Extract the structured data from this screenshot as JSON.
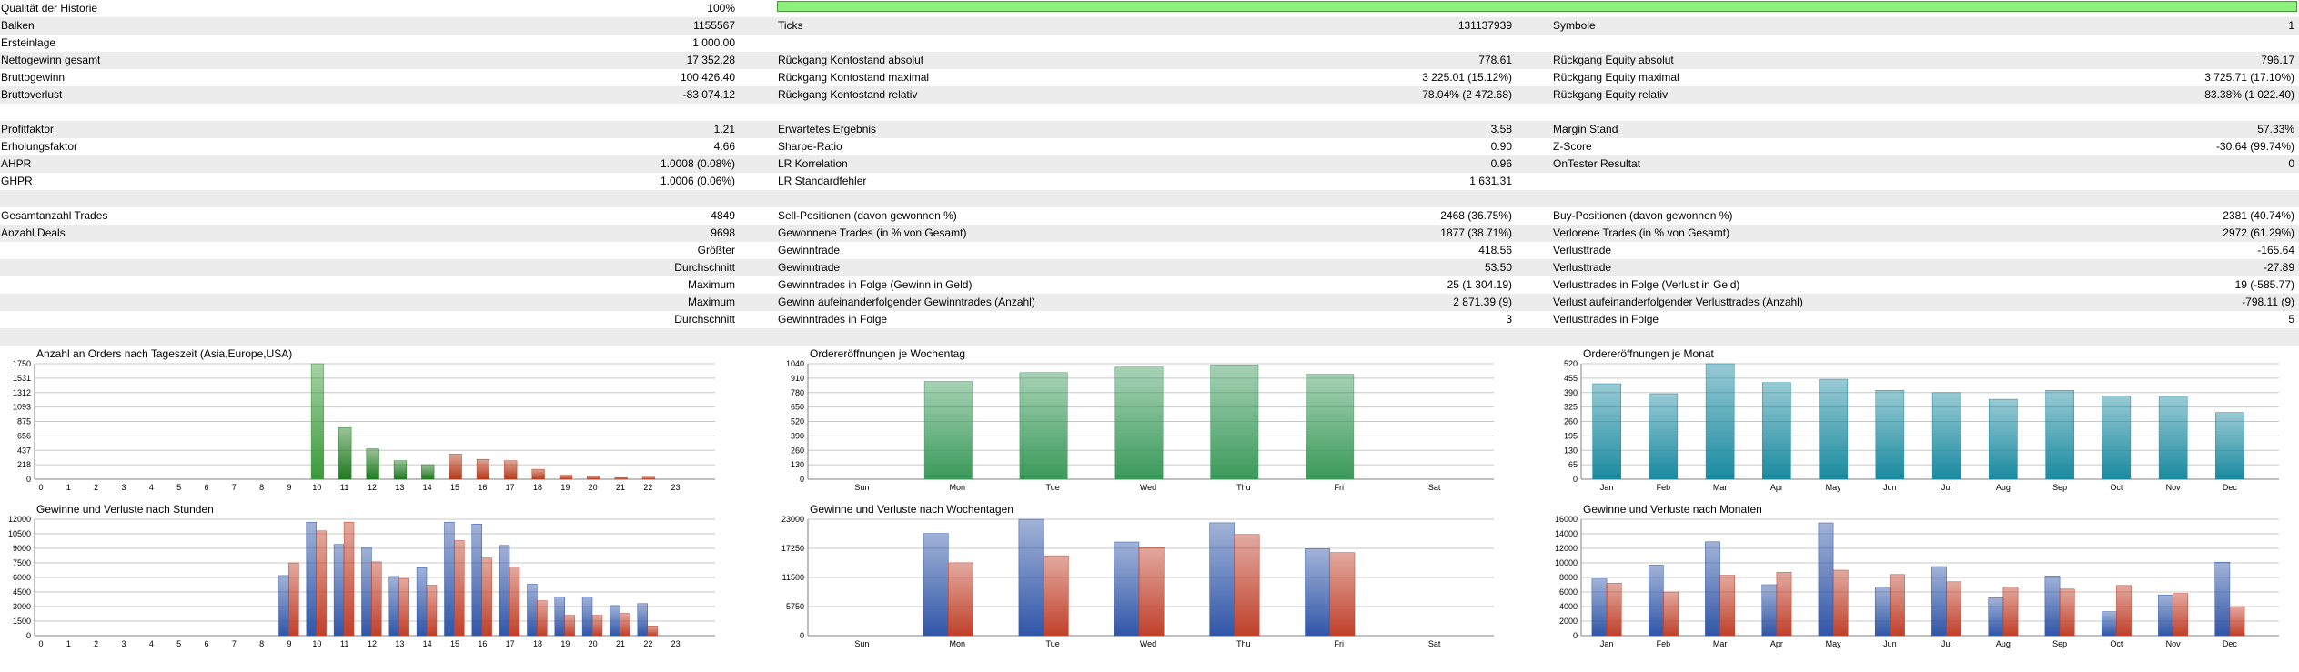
{
  "report": {
    "quality": {
      "label": "Qualität der Historie",
      "value": "100%",
      "level_percent": 100
    },
    "rows": [
      {
        "shade": false,
        "l1": "Qualität der Historie",
        "v1": "100%",
        "l2": "",
        "v2": "",
        "l3": "",
        "v3": ""
      },
      {
        "shade": true,
        "l1": "Balken",
        "v1": "1155567",
        "l2": "Ticks",
        "v2": "131137939",
        "l3": "Symbole",
        "v3": "1"
      },
      {
        "shade": false,
        "l1": "Ersteinlage",
        "v1": "1 000.00",
        "l2": "",
        "v2": "",
        "l3": "",
        "v3": ""
      },
      {
        "shade": true,
        "l1": "Nettogewinn gesamt",
        "v1": "17 352.28",
        "l2": "Rückgang Kontostand absolut",
        "v2": "778.61",
        "l3": "Rückgang Equity absolut",
        "v3": "796.17"
      },
      {
        "shade": false,
        "l1": "Bruttogewinn",
        "v1": "100 426.40",
        "l2": "Rückgang Kontostand maximal",
        "v2": "3 225.01 (15.12%)",
        "l3": "Rückgang Equity maximal",
        "v3": "3 725.71 (17.10%)"
      },
      {
        "shade": true,
        "l1": "Bruttoverlust",
        "v1": "-83 074.12",
        "l2": "Rückgang Kontostand relativ",
        "v2": "78.04% (2 472.68)",
        "l3": "Rückgang Equity relativ",
        "v3": "83.38% (1 022.40)"
      },
      {
        "shade": false,
        "l1": "",
        "v1": "",
        "l2": "",
        "v2": "",
        "l3": "",
        "v3": ""
      },
      {
        "shade": true,
        "l1": "Profitfaktor",
        "v1": "1.21",
        "l2": "Erwartetes Ergebnis",
        "v2": "3.58",
        "l3": "Margin Stand",
        "v3": "57.33%"
      },
      {
        "shade": false,
        "l1": "Erholungsfaktor",
        "v1": "4.66",
        "l2": "Sharpe-Ratio",
        "v2": "0.90",
        "l3": "Z-Score",
        "v3": "-30.64 (99.74%)"
      },
      {
        "shade": true,
        "l1": "AHPR",
        "v1": "1.0008 (0.08%)",
        "l2": "LR Korrelation",
        "v2": "0.96",
        "l3": "OnTester Resultat",
        "v3": "0"
      },
      {
        "shade": false,
        "l1": "GHPR",
        "v1": "1.0006 (0.06%)",
        "l2": "LR Standardfehler",
        "v2": "1 631.31",
        "l3": "",
        "v3": ""
      },
      {
        "shade": true,
        "l1": "",
        "v1": "",
        "l2": "",
        "v2": "",
        "l3": "",
        "v3": ""
      },
      {
        "shade": false,
        "l1": "Gesamtanzahl Trades",
        "v1": "4849",
        "l2": "Sell-Positionen (davon gewonnen %)",
        "v2": "2468 (36.75%)",
        "l3": "Buy-Positionen (davon gewonnen %)",
        "v3": "2381 (40.74%)"
      },
      {
        "shade": true,
        "l1": "Anzahl Deals",
        "v1": "9698",
        "l2": "Gewonnene Trades (in % von Gesamt)",
        "v2": "1877 (38.71%)",
        "l3": "Verlorene Trades (in % von Gesamt)",
        "v3": "2972 (61.29%)"
      },
      {
        "shade": false,
        "l1": "",
        "v1": "Größter",
        "l2": "Gewinntrade",
        "v2": "418.56",
        "l3": "Verlusttrade",
        "v3": "-165.64"
      },
      {
        "shade": true,
        "l1": "",
        "v1": "Durchschnitt",
        "l2": "Gewinntrade",
        "v2": "53.50",
        "l3": "Verlusttrade",
        "v3": "-27.89"
      },
      {
        "shade": false,
        "l1": "",
        "v1": "Maximum",
        "l2": "Gewinntrades in Folge (Gewinn in Geld)",
        "v2": "25 (1 304.19)",
        "l3": "Verlusttrades in Folge (Verlust in Geld)",
        "v3": "19 (-585.77)"
      },
      {
        "shade": true,
        "l1": "",
        "v1": "Maximum",
        "l2": "Gewinn aufeinanderfolgender Gewinntrades (Anzahl)",
        "v2": "2 871.39 (9)",
        "l3": "Verlust aufeinanderfolgender Verlusttrades (Anzahl)",
        "v3": "-798.11 (9)"
      },
      {
        "shade": false,
        "l1": "",
        "v1": "Durchschnitt",
        "l2": "Gewinntrades in Folge",
        "v2": "3",
        "l3": "Verlusttrades in Folge",
        "v3": "5"
      },
      {
        "shade": true,
        "l1": "",
        "v1": "",
        "l2": "",
        "v2": "",
        "l3": "",
        "v3": ""
      }
    ]
  },
  "chart_data": [
    {
      "type": "bar",
      "title": "Anzahl an Orders nach Tageszeit (Asia,Europe,USA)",
      "categories": [
        "0",
        "1",
        "2",
        "3",
        "4",
        "5",
        "6",
        "7",
        "8",
        "9",
        "10",
        "11",
        "12",
        "13",
        "14",
        "15",
        "16",
        "17",
        "18",
        "19",
        "20",
        "21",
        "22",
        "23"
      ],
      "yticks": [
        "0",
        "218",
        "437",
        "656",
        "875",
        "1093",
        "1312",
        "1531",
        "1750"
      ],
      "ylim": [
        0,
        1750
      ],
      "series": [
        {
          "values": [
            0,
            0,
            0,
            0,
            0,
            0,
            0,
            0,
            0,
            0,
            1750,
            780,
            460,
            280,
            220,
            380,
            300,
            280,
            150,
            60,
            45,
            25,
            30,
            0
          ]
        }
      ],
      "colors": [
        "#2a8a2a",
        "#1f7a1f",
        "#1f7a1f",
        "#1f7a1f",
        "#1f7a1f",
        "#1f7a1f",
        "#1f7a1f",
        "#1f7a1f",
        "#1f7a1f",
        "#1f7a1f",
        "#3a9a3a",
        "#1f7a1f",
        "#1f7a1f",
        "#1f7a1f",
        "#1f7a1f",
        "#b53a1a",
        "#b53a1a",
        "#b53a1a",
        "#b53a1a",
        "#b53a1a",
        "#b53a1a",
        "#b53a1a",
        "#b53a1a",
        "#b53a1a"
      ]
    },
    {
      "type": "bar",
      "title": "Ordereröffnungen je Wochentag",
      "categories": [
        "Sun",
        "Mon",
        "Tue",
        "Wed",
        "Thu",
        "Fri",
        "Sat"
      ],
      "yticks": [
        "0",
        "130",
        "260",
        "390",
        "520",
        "650",
        "780",
        "910",
        "1040"
      ],
      "ylim": [
        0,
        1040
      ],
      "series": [
        {
          "values": [
            0,
            880,
            960,
            1010,
            1030,
            945,
            0
          ]
        }
      ],
      "colors": [
        "#3a9a5a"
      ]
    },
    {
      "type": "bar",
      "title": "Ordereröffnungen je Monat",
      "categories": [
        "Jan",
        "Feb",
        "Mar",
        "Apr",
        "May",
        "Jun",
        "Jul",
        "Aug",
        "Sep",
        "Oct",
        "Nov",
        "Dec"
      ],
      "yticks": [
        "0",
        "65",
        "130",
        "195",
        "260",
        "325",
        "390",
        "455",
        "520"
      ],
      "ylim": [
        0,
        520
      ],
      "series": [
        {
          "values": [
            430,
            385,
            520,
            435,
            450,
            400,
            390,
            360,
            400,
            375,
            370,
            300
          ]
        }
      ],
      "colors": [
        "#1a8aa0"
      ]
    },
    {
      "type": "bar",
      "title": "Gewinne und Verluste nach Stunden",
      "categories": [
        "0",
        "1",
        "2",
        "3",
        "4",
        "5",
        "6",
        "7",
        "8",
        "9",
        "10",
        "11",
        "12",
        "13",
        "14",
        "15",
        "16",
        "17",
        "18",
        "19",
        "20",
        "21",
        "22",
        "23"
      ],
      "yticks": [
        "0",
        "1500",
        "3000",
        "4500",
        "6000",
        "7500",
        "9000",
        "10500",
        "12000"
      ],
      "ylim": [
        0,
        12000
      ],
      "series": [
        {
          "values": [
            0,
            0,
            0,
            0,
            0,
            0,
            0,
            0,
            0,
            6200,
            11700,
            9400,
            9100,
            6100,
            7000,
            11700,
            11500,
            9300,
            5300,
            4000,
            4000,
            3100,
            3300,
            0
          ]
        },
        {
          "values": [
            0,
            0,
            0,
            0,
            0,
            0,
            0,
            0,
            0,
            7500,
            10800,
            11700,
            7600,
            5900,
            5200,
            9800,
            8000,
            7100,
            3600,
            2100,
            2100,
            2300,
            1000,
            0
          ]
        }
      ],
      "colors": [
        "#3056a8",
        "#c0402a"
      ]
    },
    {
      "type": "bar",
      "title": "Gewinne und Verluste nach Wochentagen",
      "categories": [
        "Sun",
        "Mon",
        "Tue",
        "Wed",
        "Thu",
        "Fri",
        "Sat"
      ],
      "yticks": [
        "0",
        "5750",
        "11500",
        "17250",
        "23000"
      ],
      "ylim": [
        0,
        23000
      ],
      "series": [
        {
          "values": [
            0,
            20200,
            23000,
            18500,
            22300,
            17200,
            0
          ]
        },
        {
          "values": [
            0,
            14400,
            15800,
            17400,
            20000,
            16400,
            0
          ]
        }
      ],
      "colors": [
        "#3056a8",
        "#c0402a"
      ]
    },
    {
      "type": "bar",
      "title": "Gewinne und Verluste nach Monaten",
      "categories": [
        "Jan",
        "Feb",
        "Mar",
        "Apr",
        "May",
        "Jun",
        "Jul",
        "Aug",
        "Sep",
        "Oct",
        "Nov",
        "Dec"
      ],
      "yticks": [
        "0",
        "2000",
        "4000",
        "6000",
        "8000",
        "10000",
        "12000",
        "14000",
        "16000"
      ],
      "ylim": [
        0,
        16000
      ],
      "series": [
        {
          "values": [
            7800,
            9700,
            12900,
            7000,
            15500,
            6700,
            9500,
            5200,
            8200,
            3300,
            5600,
            10100
          ]
        },
        {
          "values": [
            7200,
            6000,
            8300,
            8700,
            9000,
            8400,
            7400,
            6700,
            6400,
            6900,
            5800,
            4000
          ]
        }
      ],
      "colors": [
        "#3056a8",
        "#c0402a"
      ]
    }
  ]
}
